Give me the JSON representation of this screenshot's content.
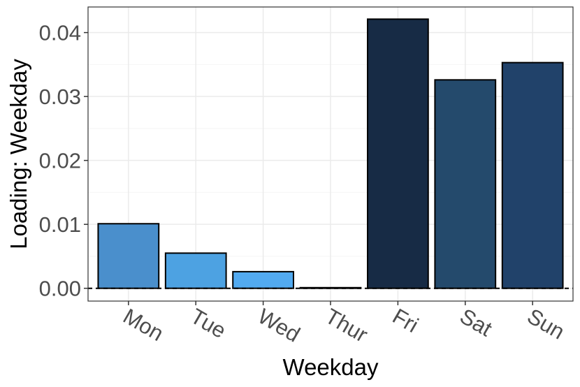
{
  "chart_data": {
    "type": "bar",
    "title": "",
    "xlabel": "Weekday",
    "ylabel": "Loading: Weekday",
    "categories": [
      "Mon",
      "Tue",
      "Wed",
      "Thur",
      "Fri",
      "Sat",
      "Sun"
    ],
    "values": [
      0.0101,
      0.0055,
      0.0026,
      0.0001,
      0.0421,
      0.0326,
      0.0353
    ],
    "bar_colors": [
      "#4a8fcc",
      "#4da2e2",
      "#52aaf0",
      "#5ab1f5",
      "#172b45",
      "#244a6c",
      "#21426a"
    ],
    "ylim": [
      -0.002,
      0.044
    ],
    "yticks": [
      0.0,
      0.01,
      0.02,
      0.03,
      0.04
    ],
    "ytick_labels": [
      "0.00",
      "0.01",
      "0.02",
      "0.03",
      "0.04"
    ],
    "grid": true,
    "reference_line": 0,
    "legend": "none"
  }
}
